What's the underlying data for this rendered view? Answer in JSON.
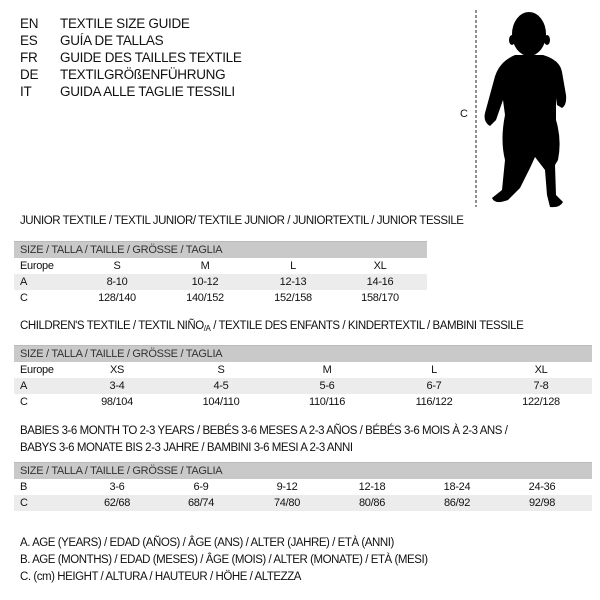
{
  "languages": [
    {
      "code": "EN",
      "title": "TEXTILE SIZE GUIDE"
    },
    {
      "code": "ES",
      "title": "GUÍA DE TALLAS"
    },
    {
      "code": "FR",
      "title": "GUIDE DES TAILLES TEXTILE"
    },
    {
      "code": "DE",
      "title": "TEXTILGRÖßENFÜHRUNG"
    },
    {
      "code": "IT",
      "title": "GUIDA ALLE TAGLIE TESSILI"
    }
  ],
  "figure": {
    "label": "C",
    "icon": "child-silhouette"
  },
  "junior": {
    "title": "JUNIOR TEXTILE / TEXTIL JUNIOR/ TEXTILE JUNIOR / JUNIORTEXTIL / JUNIOR TESSILE",
    "header": "SIZE / TALLA / TAILLE / GRÖSSE / TAGLIA",
    "rows": [
      {
        "label": "Europe",
        "values": [
          "S",
          "M",
          "L",
          "XL"
        ]
      },
      {
        "label": "A",
        "values": [
          "8-10",
          "10-12",
          "12-13",
          "14-16"
        ]
      },
      {
        "label": "C",
        "values": [
          "128/140",
          "140/152",
          "152/158",
          "158/170"
        ]
      }
    ]
  },
  "children": {
    "title_main": "CHILDREN'S TEXTILE / TEXTIL NIÑO",
    "title_sub": "/A",
    "title_rest": " / TEXTILE DES ENFANTS / KINDERTEXTIL / BAMBINI TESSILE",
    "header": "SIZE / TALLA / TAILLE / GRÖSSE / TAGLIA",
    "rows": [
      {
        "label": "Europe",
        "values": [
          "XS",
          "S",
          "M",
          "L",
          "XL"
        ]
      },
      {
        "label": "A",
        "values": [
          "3-4",
          "4-5",
          "5-6",
          "6-7",
          "7-8"
        ]
      },
      {
        "label": "C",
        "values": [
          "98/104",
          "104/110",
          "110/116",
          "116/122",
          "122/128"
        ]
      }
    ]
  },
  "babies": {
    "title_line1": "BABIES 3-6 MONTH TO 2-3 YEARS / BEBÉS 3-6 MESES A 2-3 AÑOS / BÉBÉS 3-6 MOIS À 2-3 ANS /",
    "title_line2": "BABYS 3-6 MONATE BIS 2-3 JAHRE / BAMBINI 3-6 MESI A 2-3 ANNI",
    "header": "SIZE / TALLA / TAILLE / GRÖSSE / TAGLIA",
    "rows": [
      {
        "label": "B",
        "values": [
          "3-6",
          "6-9",
          "9-12",
          "12-18",
          "18-24",
          "24-36"
        ]
      },
      {
        "label": "C",
        "values": [
          "62/68",
          "68/74",
          "74/80",
          "80/86",
          "86/92",
          "92/98"
        ]
      }
    ]
  },
  "legend": [
    "A. AGE (YEARS) / EDAD (AÑOS) / ÂGE (ANS) / ALTER (JAHRE) / ETÀ (ANNI)",
    "B. AGE (MONTHS) / EDAD (MESES) / ÂGE (MOIS) / ALTER (MONATE) / ETÀ (MESI)",
    "C. (cm) HEIGHT / ALTURA / HAUTEUR / HÖHE / ALTEZZA"
  ]
}
